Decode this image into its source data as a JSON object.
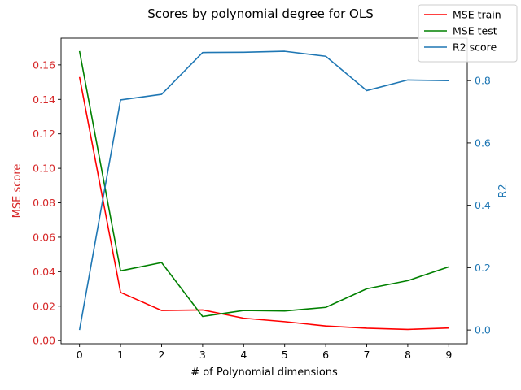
{
  "chart_data": {
    "type": "line",
    "title": "Scores by polynomial degree for OLS",
    "xlabel": "# of Polynomial dimensions",
    "ylabel_left": "MSE score",
    "ylabel_right": "R2",
    "x": [
      0,
      1,
      2,
      3,
      4,
      5,
      6,
      7,
      8,
      9
    ],
    "x_ticks": [
      "0",
      "1",
      "2",
      "3",
      "4",
      "5",
      "6",
      "7",
      "8",
      "9"
    ],
    "xlim": [
      -0.45,
      9.45
    ],
    "ylim_left": [
      -0.0018,
      0.1755
    ],
    "ylim_right": [
      -0.044,
      0.936
    ],
    "left_ticks": [
      "0.00",
      "0.02",
      "0.04",
      "0.06",
      "0.08",
      "0.10",
      "0.12",
      "0.14",
      "0.16"
    ],
    "right_ticks": [
      "0.0",
      "0.2",
      "0.4",
      "0.6",
      "0.8"
    ],
    "left_axis_color": "#d62728",
    "right_axis_color": "#1f77b4",
    "legend_position": "top-right",
    "grid": false,
    "series": [
      {
        "name": "MSE train",
        "color": "#ff0000",
        "axis": "left",
        "values": [
          0.153,
          0.028,
          0.0175,
          0.0178,
          0.013,
          0.011,
          0.0085,
          0.0072,
          0.0065,
          0.0073
        ]
      },
      {
        "name": "MSE test",
        "color": "#008000",
        "axis": "left",
        "values": [
          0.168,
          0.0405,
          0.0453,
          0.014,
          0.0175,
          0.0172,
          0.0193,
          0.0301,
          0.0348,
          0.0428
        ]
      },
      {
        "name": "R2 score",
        "color": "#1f77b4",
        "axis": "right",
        "values": [
          0.0,
          0.738,
          0.756,
          0.89,
          0.891,
          0.894,
          0.878,
          0.768,
          0.802,
          0.8
        ]
      }
    ]
  }
}
